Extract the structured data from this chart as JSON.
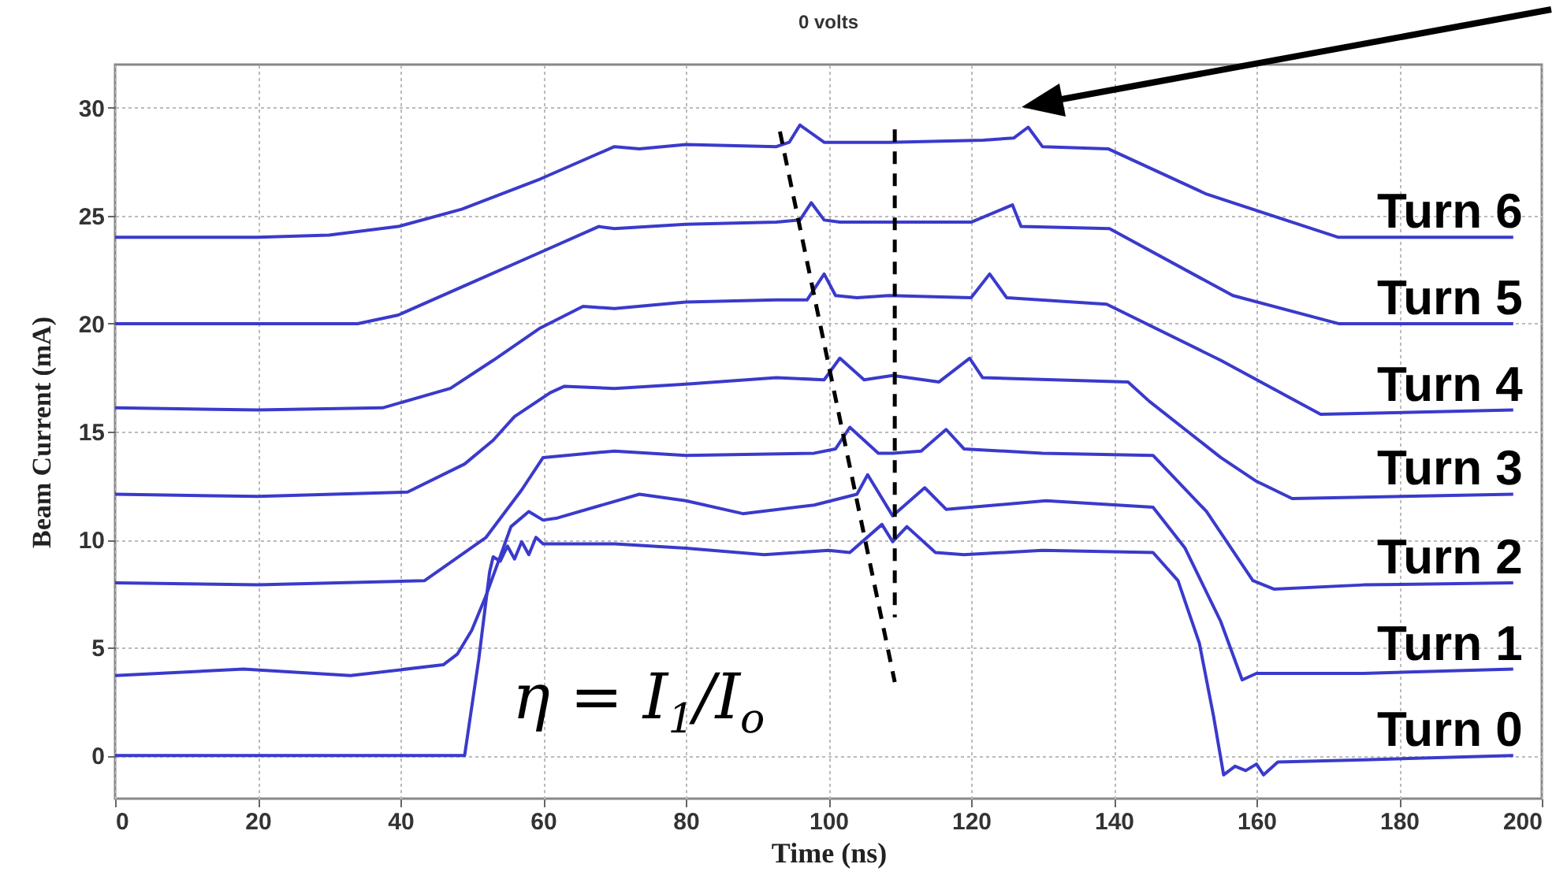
{
  "chart_data": {
    "type": "line",
    "title": "0 volts",
    "xlabel": "Time (ns)",
    "ylabel": "Beam Current (mA)",
    "xlim": [
      0,
      200
    ],
    "ylim": [
      -2,
      32
    ],
    "xticks": [
      0,
      20,
      40,
      60,
      80,
      100,
      120,
      140,
      160,
      180,
      200
    ],
    "yticks": [
      0,
      5,
      10,
      15,
      20,
      25,
      30
    ],
    "grid": true,
    "line_style": "solid",
    "annotations": [
      "η = I$_{1}$/I$_{o}$"
    ],
    "series": [
      {
        "name": "Turn 6",
        "color": "#3a3acc",
        "x": [
          0,
          20,
          30,
          39.7,
          48.6,
          59.6,
          70,
          73.5,
          80,
          92.7,
          94.5,
          96,
          99.4,
          108.5,
          121.7,
          126,
          128,
          130,
          139.2,
          153,
          171.5,
          196
        ],
        "values": [
          24.0,
          24.0,
          24.1,
          24.5,
          25.3,
          26.7,
          28.2,
          28.1,
          28.3,
          28.2,
          28.4,
          29.2,
          28.4,
          28.4,
          28.5,
          28.6,
          29.1,
          28.2,
          28.1,
          26.0,
          24.0,
          24.0
        ]
      },
      {
        "name": "Turn 5",
        "color": "#3a3acc",
        "x": [
          0,
          20,
          34,
          39.7,
          48.6,
          59.6,
          67.8,
          70,
          80,
          92.7,
          96,
          97.6,
          99.4,
          101.6,
          120,
          125.8,
          127,
          139.4,
          156.7,
          171.5,
          196
        ],
        "values": [
          20.0,
          20.0,
          20.0,
          20.4,
          21.7,
          23.3,
          24.5,
          24.4,
          24.6,
          24.7,
          24.8,
          25.6,
          24.8,
          24.7,
          24.7,
          25.5,
          24.5,
          24.4,
          21.3,
          20.0,
          20.0
        ]
      },
      {
        "name": "Turn 4",
        "color": "#3a3acc",
        "x": [
          0,
          20,
          37.5,
          47,
          53,
          59.6,
          65.6,
          70,
          80,
          92.7,
          97,
          99.4,
          101,
          104,
          108.5,
          120,
          122.6,
          125,
          139,
          155,
          169,
          196
        ],
        "values": [
          16.1,
          16.0,
          16.1,
          17.0,
          18.3,
          19.8,
          20.8,
          20.7,
          21.0,
          21.1,
          21.1,
          22.3,
          21.3,
          21.2,
          21.3,
          21.2,
          22.3,
          21.2,
          20.9,
          18.3,
          15.8,
          16.0
        ]
      },
      {
        "name": "Turn 3",
        "color": "#3a3acc",
        "x": [
          0,
          20,
          41,
          49,
          53,
          56,
          61,
          63,
          70,
          80,
          92.7,
          99.4,
          101.6,
          105,
          109,
          115.5,
          119.8,
          121.6,
          142,
          145,
          155,
          160,
          165,
          196
        ],
        "values": [
          12.1,
          12.0,
          12.2,
          13.5,
          14.6,
          15.7,
          16.8,
          17.1,
          17.0,
          17.2,
          17.5,
          17.4,
          18.4,
          17.4,
          17.6,
          17.3,
          18.4,
          17.5,
          17.3,
          16.4,
          13.8,
          12.7,
          11.9,
          12.1
        ]
      },
      {
        "name": "Turn 2",
        "color": "#3a3acc",
        "x": [
          0,
          20,
          43.4,
          52,
          57,
          60,
          70,
          80,
          98,
          101,
          103,
          107,
          109,
          113,
          116.5,
          119,
          130,
          145.5,
          153,
          159.5,
          162.5,
          175,
          196
        ],
        "values": [
          8.0,
          7.9,
          8.1,
          10.1,
          12.3,
          13.8,
          14.1,
          13.9,
          14.0,
          14.2,
          15.2,
          14.0,
          14.0,
          14.1,
          15.1,
          14.2,
          14.0,
          13.9,
          11.3,
          8.1,
          7.7,
          7.9,
          8.0
        ]
      },
      {
        "name": "Turn 1",
        "color": "#3a3acc",
        "x": [
          0,
          18,
          33,
          46,
          48,
          50,
          52,
          55.5,
          58,
          60,
          62,
          73.5,
          80,
          88,
          98,
          104,
          105.5,
          109,
          113.5,
          116.5,
          130.5,
          145.5,
          150,
          155,
          158,
          160,
          175,
          196
        ],
        "values": [
          3.7,
          4.0,
          3.7,
          4.2,
          4.7,
          5.8,
          7.4,
          10.6,
          11.3,
          10.9,
          11.0,
          12.1,
          11.8,
          11.2,
          11.6,
          12.1,
          13.0,
          11.1,
          12.4,
          11.4,
          11.8,
          11.5,
          9.6,
          6.2,
          3.5,
          3.8,
          3.8,
          4.0
        ]
      },
      {
        "name": "Turn 0",
        "color": "#3a3acc",
        "x": [
          0,
          20,
          40,
          49,
          51,
          52.5,
          53,
          54,
          55,
          56,
          57,
          58,
          59,
          60,
          70,
          80,
          91,
          100,
          103,
          107.5,
          109,
          111,
          115,
          119,
          130,
          145.5,
          149,
          152,
          154,
          155.4,
          157,
          158.5,
          160,
          161,
          163,
          175,
          196
        ],
        "values": [
          0,
          0,
          0,
          0,
          4.5,
          8.5,
          9.2,
          9.0,
          9.7,
          9.1,
          9.9,
          9.3,
          10.1,
          9.8,
          9.8,
          9.6,
          9.3,
          9.5,
          9.4,
          10.7,
          9.9,
          10.6,
          9.4,
          9.3,
          9.5,
          9.4,
          8.1,
          5.2,
          1.8,
          -0.9,
          -0.5,
          -0.7,
          -0.4,
          -0.9,
          -0.3,
          -0.2,
          0
        ]
      },
      {
        "color": "#000000",
        "line_style": "dashed",
        "x": [
          93.2,
          109.3
        ],
        "values": [
          28.9,
          3.4
        ]
      },
      {
        "color": "#000000",
        "line_style": "dashed",
        "x": [
          109.3,
          109.3
        ],
        "values": [
          29.0,
          6.4
        ]
      }
    ]
  }
}
